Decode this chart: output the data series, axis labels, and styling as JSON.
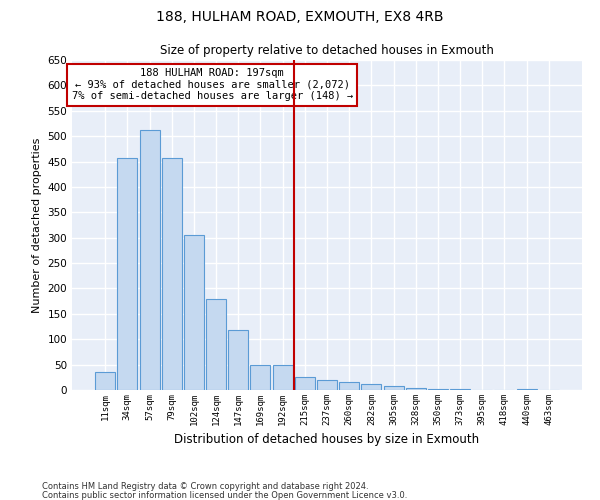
{
  "title": "188, HULHAM ROAD, EXMOUTH, EX8 4RB",
  "subtitle": "Size of property relative to detached houses in Exmouth",
  "xlabel": "Distribution of detached houses by size in Exmouth",
  "ylabel": "Number of detached properties",
  "bar_color": "#c5d9f0",
  "bar_edge_color": "#5b9bd5",
  "categories": [
    "11sqm",
    "34sqm",
    "57sqm",
    "79sqm",
    "102sqm",
    "124sqm",
    "147sqm",
    "169sqm",
    "192sqm",
    "215sqm",
    "237sqm",
    "260sqm",
    "282sqm",
    "305sqm",
    "328sqm",
    "350sqm",
    "373sqm",
    "395sqm",
    "418sqm",
    "440sqm",
    "463sqm"
  ],
  "values": [
    35,
    457,
    512,
    457,
    305,
    180,
    118,
    50,
    50,
    26,
    20,
    16,
    11,
    7,
    3,
    2,
    1,
    0,
    0,
    1,
    0
  ],
  "vline_x": 8.5,
  "vline_color": "#c00000",
  "annotation_text": "188 HULHAM ROAD: 197sqm\n← 93% of detached houses are smaller (2,072)\n7% of semi-detached houses are larger (148) →",
  "ylim": [
    0,
    650
  ],
  "yticks": [
    0,
    50,
    100,
    150,
    200,
    250,
    300,
    350,
    400,
    450,
    500,
    550,
    600,
    650
  ],
  "bg_color": "#e8eef8",
  "grid_color": "#ffffff",
  "footer1": "Contains HM Land Registry data © Crown copyright and database right 2024.",
  "footer2": "Contains public sector information licensed under the Open Government Licence v3.0."
}
